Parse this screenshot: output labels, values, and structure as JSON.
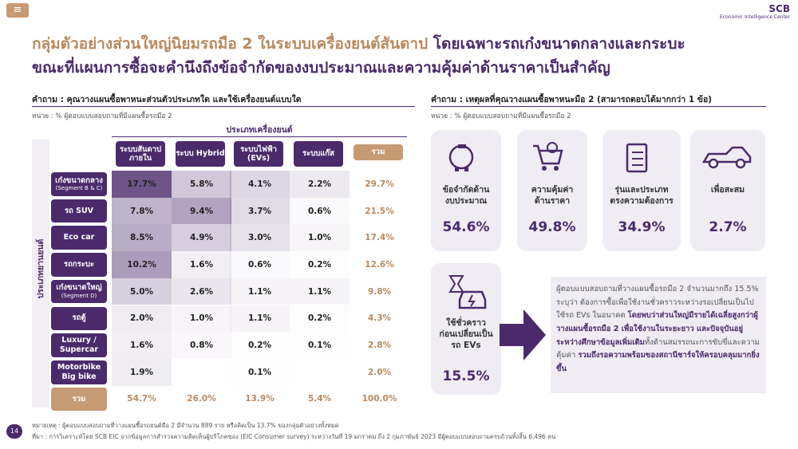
{
  "header": {
    "logo": "SCB",
    "logo_sub": "Economic Intelligence Center"
  },
  "title": {
    "line1_part1": "กลุ่มตัวอย่างส่วนใหญ่นิยมรถมือ 2 ในระบบเครื่องยนต์สันดาป",
    "line1_part2": "โดยเฉพาะรถเก๋งขนาดกลางและกระบะ",
    "line2": "ขณะที่แผนการซื้อจะคำนึงถึงข้อจำกัดของงบประมาณและความคุ้มค่าด้านราคาเป็นสำคัญ"
  },
  "left": {
    "question": "คำถาม : คุณวางแผนซื้อพาหนะส่วนตัวประเภทใด และใช้เครื่องยนต์แบบใด",
    "unit": "หน่วย : % ผู้ตอบแบบสอบถามที่มีแผนซื้อรถมือ 2",
    "column_group": "ประเภทเครื่องยนต์",
    "row_group": "ประเภทยานยนต์",
    "columns": [
      "ระบบสันดาป\nภายใน",
      "ระบบ Hybrid",
      "ระบบไฟฟ้า\n(EVs)",
      "ระบบแก๊ส",
      "รวม"
    ],
    "rows": [
      {
        "label": "เก๋งขนาดกลาง",
        "sublabel": "(Segment B & C)",
        "cells": [
          "17.7%",
          "5.8%",
          "4.1%",
          "2.2%",
          "29.7%"
        ]
      },
      {
        "label": "รถ SUV",
        "cells": [
          "7.8%",
          "9.4%",
          "3.7%",
          "0.6%",
          "21.5%"
        ]
      },
      {
        "label": "Eco car",
        "cells": [
          "8.5%",
          "4.9%",
          "3.0%",
          "1.0%",
          "17.4%"
        ]
      },
      {
        "label": "รถกระบะ",
        "cells": [
          "10.2%",
          "1.6%",
          "0.6%",
          "0.2%",
          "12.6%"
        ]
      },
      {
        "label": "เก๋งขนาดใหญ่",
        "sublabel": "(Segment D)",
        "cells": [
          "5.0%",
          "2.6%",
          "1.1%",
          "1.1%",
          "9.8%"
        ]
      },
      {
        "label": "รถตู้",
        "cells": [
          "2.0%",
          "1.0%",
          "1.1%",
          "0.2%",
          "4.3%"
        ]
      },
      {
        "label": "Luxury /\nSupercar",
        "cells": [
          "1.6%",
          "0.8%",
          "0.2%",
          "0.1%",
          "2.8%"
        ]
      },
      {
        "label": "Motorbike\nBig bike",
        "cells": [
          "1.9%",
          null,
          "0.1%",
          null,
          "2.0%"
        ]
      }
    ],
    "total_row": {
      "label": "รวม",
      "cells": [
        "54.7%",
        "26.0%",
        "13.9%",
        "5.4%",
        "100.0%"
      ]
    }
  },
  "right": {
    "question": "คำถาม : เหตุผลที่คุณวางแผนซื้อพาหนะมือ 2 (สามารถตอบได้มากกว่า 1 ข้อ)",
    "unit": "หน่วย : % ผู้ตอบแบบสอบถามที่มีแผนซื้อรถมือ 2",
    "cards": [
      {
        "label": "ข้อจำกัดด้าน\nงบประมาณ",
        "value": "54.6%"
      },
      {
        "label": "ความคุ้มค่า\nด้านราคา",
        "value": "49.8%"
      },
      {
        "label": "รุ่นและประเภท\nตรงความต้องการ",
        "value": "34.9%"
      },
      {
        "label": "เพื่อสะสม",
        "value": "2.7%"
      },
      {
        "label": "ใช้ชั่วคราว\nก่อนเปลี่ยนเป็น\nรถ EVs",
        "value": "15.5%"
      }
    ],
    "summary": [
      {
        "text": "ผู้ตอบแบบสอบถามที่วางแผนซื้อรถมือ 2 จำนวนมากถึง 15.5% ระบุว่า ต้องการซื้อเพื่อใช้งานชั่วคราวระหว่างรอเปลี่ยนเป็นไปใช้รถ EVs ในอนาคต ",
        "bold": false
      },
      {
        "text": "โดยพบว่าส่วนใหญ่มีรายได้เฉลี่ยสูงกว่าผู้วางแผนซื้อรถมือ 2 เพื่อใช้งานในระยะยาว และปัจจุบันอยู่ระหว่างศึกษาข้อมูลเพิ่มเติม",
        "bold": true
      },
      {
        "text": "ทั้งด้านสมรรถนะการขับขี่และความคุ้มค่า ",
        "bold": false
      },
      {
        "text": "รวมถึงรอความพร้อมของสถานีชาร์จให้ครอบคลุมมากยิ่งขึ้น",
        "bold": true
      }
    ]
  },
  "footer": {
    "page": "14",
    "note": "หมายเหตุ : ผู้ตอบแบบสอบถามที่วางแผนซื้อรถยนต์มือ 2 มีจำนวน 889 ราย หรือคิดเป็น 13.7% ของกลุ่มตัวอย่างทั้งหมด",
    "source": "ที่มา : การวิเคราะห์โดย SCB EIC จากข้อมูลการสำรวจความคิดเห็นผู้บริโภคของ (EIC Consumer survey) ระหว่างวันที่ 19 มกราคม ถึง 2 กุมภาพันธ์ 2023 มีผู้ตอบแบบสอบถามครบถ้วนทั้งสิ้น 6,496 คน"
  }
}
